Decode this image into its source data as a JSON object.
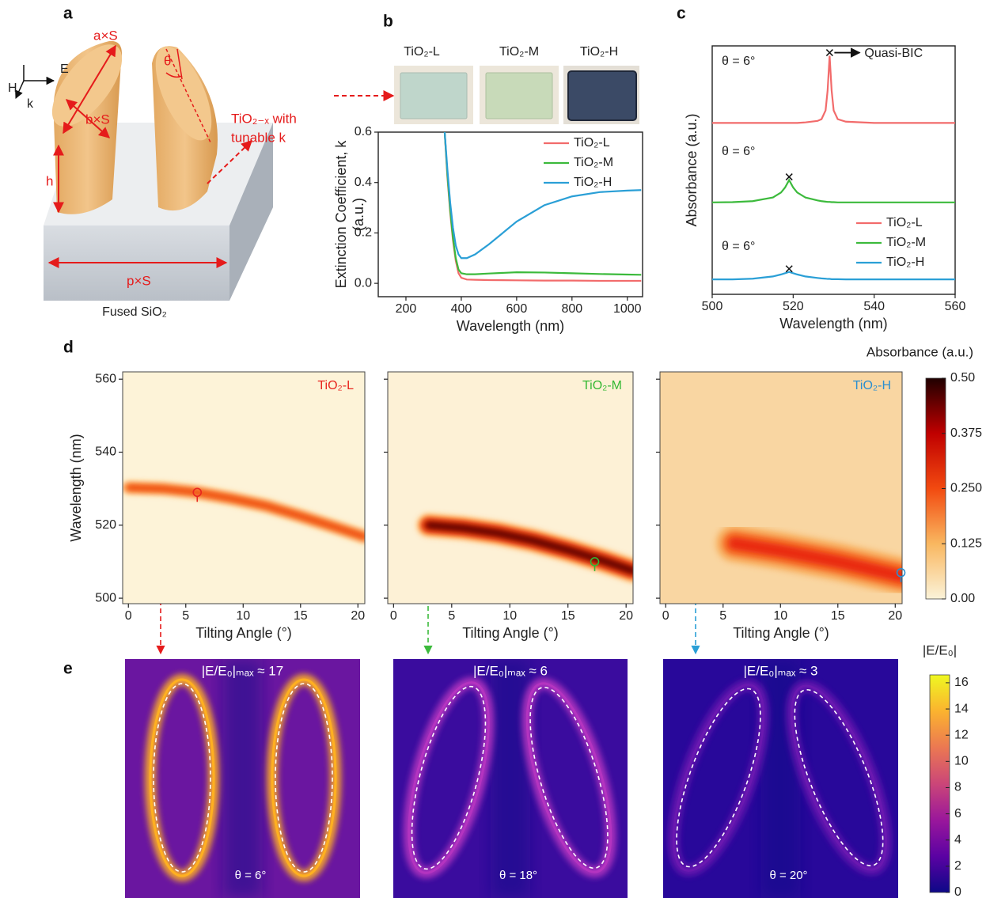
{
  "panel_labels": [
    "a",
    "b",
    "c",
    "d",
    "e"
  ],
  "schematic": {
    "field_labels": [
      "E",
      "H",
      "k"
    ],
    "dims": [
      "a×S",
      "θ",
      "b×S",
      "h",
      "p×S"
    ],
    "material": [
      "TiO₂₋ₓ with",
      "tunable k"
    ],
    "substrate": "Fused SiO₂"
  },
  "samples": [
    "TiO₂-L",
    "TiO₂-M",
    "TiO₂-H"
  ],
  "chart_data": [
    {
      "type": "line",
      "x_label": "Wavelength (nm)",
      "y_label": [
        "Extinction Coefficient, k",
        "(a.u.)"
      ],
      "x": [
        340,
        350,
        360,
        370,
        380,
        390,
        400,
        420,
        450,
        500,
        600,
        700,
        800,
        900,
        1000,
        1050
      ],
      "series": [
        {
          "name": "TiO₂-L",
          "color": "#f26b6b",
          "values": [
            0.6,
            0.42,
            0.28,
            0.17,
            0.09,
            0.04,
            0.022,
            0.015,
            0.014,
            0.013,
            0.012,
            0.011,
            0.011,
            0.01,
            0.01,
            0.01
          ]
        },
        {
          "name": "TiO₂-M",
          "color": "#3cba3c",
          "values": [
            0.6,
            0.43,
            0.29,
            0.18,
            0.1,
            0.055,
            0.04,
            0.036,
            0.036,
            0.039,
            0.044,
            0.043,
            0.04,
            0.037,
            0.035,
            0.034
          ]
        },
        {
          "name": "TiO₂-H",
          "color": "#2a9fd6",
          "values": [
            0.6,
            0.45,
            0.32,
            0.22,
            0.15,
            0.115,
            0.1,
            0.1,
            0.115,
            0.155,
            0.245,
            0.31,
            0.345,
            0.362,
            0.368,
            0.37
          ]
        }
      ],
      "xlim": [
        100,
        1055
      ],
      "xticks": [
        200,
        400,
        600,
        800,
        1000
      ],
      "ylim": [
        -0.053,
        0.6
      ],
      "yticks": [
        {
          "value": 0,
          "label": "0.0"
        },
        {
          "value": 0.2,
          "label": "0.2"
        },
        {
          "value": 0.4,
          "label": "0.4"
        },
        {
          "value": 0.6,
          "label": "0.6"
        }
      ],
      "legend": "upper right"
    },
    {
      "type": "line",
      "x_label": "Wavelength (nm)",
      "y_label": "Absorbance (a.u.)",
      "x": [
        500,
        505,
        510,
        515,
        517,
        518,
        519,
        520,
        521,
        523,
        526,
        527,
        528,
        528.5,
        529,
        529.5,
        530,
        531,
        533,
        540,
        550,
        560
      ],
      "series": [
        {
          "name": "TiO₂-L",
          "color": "#f26b6b",
          "values": [
            0.69,
            0.69,
            0.69,
            0.69,
            0.69,
            0.69,
            0.69,
            0.69,
            0.69,
            0.692,
            0.698,
            0.705,
            0.74,
            0.82,
            0.96,
            0.82,
            0.74,
            0.705,
            0.695,
            0.69,
            0.69,
            0.69
          ]
        },
        {
          "name": "TiO₂-M",
          "color": "#3cba3c",
          "values": [
            0.37,
            0.371,
            0.375,
            0.39,
            0.41,
            0.43,
            0.46,
            0.43,
            0.41,
            0.39,
            0.378,
            0.375,
            0.373,
            0.372,
            0.372,
            0.371,
            0.371,
            0.37,
            0.37,
            0.37,
            0.37,
            0.37
          ]
        },
        {
          "name": "TiO₂-H",
          "color": "#2a9fd6",
          "values": [
            0.06,
            0.06,
            0.063,
            0.072,
            0.08,
            0.085,
            0.09,
            0.085,
            0.08,
            0.072,
            0.066,
            0.064,
            0.063,
            0.062,
            0.062,
            0.061,
            0.061,
            0.061,
            0.06,
            0.06,
            0.06,
            0.06
          ]
        }
      ],
      "xlim": [
        500,
        560
      ],
      "xticks": [
        500,
        520,
        540,
        560
      ],
      "ylim": [
        0,
        1
      ],
      "legend": "lower right",
      "angle_labels": [
        "θ = 6°",
        "θ = 6°",
        "θ = 6°"
      ],
      "callout": "Quasi-BIC"
    },
    {
      "type": "heatmap",
      "title": "TiO₂-L",
      "title_color": "#e8261f",
      "x_label": "Tilting Angle (°)",
      "y_label": "Wavelength (nm)",
      "xlim": [
        -0.5,
        20.6
      ],
      "xticks": [
        0,
        5,
        10,
        15,
        20
      ],
      "ylim": [
        498.5,
        562
      ],
      "yticks": [
        500,
        520,
        540,
        560
      ],
      "ytick_labels": true,
      "background": "#fdf3d8",
      "ridge_colors": [
        "#ffc070",
        "#ff7a1a",
        "#e0200a"
      ],
      "ridge_x": [
        0,
        3,
        6,
        9,
        12,
        15,
        18,
        20.6
      ],
      "ridge_y": [
        530.3,
        530,
        529,
        527.3,
        525.3,
        522.5,
        519.5,
        516.8
      ],
      "marker": [
        6,
        529
      ]
    },
    {
      "type": "heatmap",
      "title": "TiO₂-M",
      "title_color": "#33b833",
      "x_label": "Tilting Angle (°)",
      "xlim": [
        -0.5,
        20.6
      ],
      "xticks": [
        0,
        5,
        10,
        15,
        20
      ],
      "ylim": [
        498.5,
        562
      ],
      "yticks": [
        500,
        520,
        540,
        560
      ],
      "ytick_labels": false,
      "background": "#fdf1d6",
      "ridge_colors": [
        "#ffb860",
        "#ff5a10",
        "#d01005",
        "#300000"
      ],
      "ridge_x": [
        3,
        6,
        9,
        12,
        15,
        18,
        20.6
      ],
      "ridge_y": [
        520,
        519.2,
        517.8,
        515.8,
        513.2,
        510.3,
        507.5
      ],
      "marker": [
        17.3,
        510
      ]
    },
    {
      "type": "heatmap",
      "title": "TiO₂-H",
      "title_color": "#2b8fd0",
      "x_label": "Tilting Angle (°)",
      "xlim": [
        -0.5,
        20.6
      ],
      "xticks": [
        0,
        5,
        10,
        15,
        20
      ],
      "ylim": [
        498.5,
        562
      ],
      "yticks": [
        500,
        520,
        540,
        560
      ],
      "ytick_labels": false,
      "background": "#f9d6a2",
      "ridge_colors": [
        "#f8b060",
        "#f56a20",
        "#e8200a"
      ],
      "ridge_x": [
        6,
        10,
        15,
        20.6
      ],
      "ridge_y": [
        515,
        513,
        510,
        506
      ],
      "marker": [
        20.5,
        507
      ]
    },
    {
      "type": "colorbar",
      "title": "Absorbance (a.u.)",
      "lim": [
        0,
        0.5
      ],
      "ticks": [
        {
          "value": 0,
          "label": "0.00"
        },
        0.125,
        {
          "value": 0.25,
          "label": "0.250"
        },
        0.375,
        {
          "value": 0.5,
          "label": "0.50"
        }
      ],
      "colors": [
        "#fbf3d9",
        "#f9b760",
        "#f24a10",
        "#c00000",
        "#200000"
      ]
    },
    {
      "type": "field-map",
      "title": "|E/E₀|ₘₐₓ ≈ 17",
      "annotation": "θ = 6°",
      "background": "#6a16a0",
      "glow": "#ffb020"
    },
    {
      "type": "field-map",
      "title": "|E/E₀|ₘₐₓ ≈ 6",
      "annotation": "θ = 18°",
      "background": "#3a0c9e",
      "glow": "#b434c0"
    },
    {
      "type": "field-map",
      "title": "|E/E₀|ₘₐₓ ≈ 3",
      "annotation": "θ = 20°",
      "background": "#28089a",
      "glow": "#6a18b0"
    },
    {
      "type": "colorbar",
      "title": "|E/E₀|",
      "lim": [
        0,
        16.6
      ],
      "ticks": [
        0,
        2,
        4,
        6,
        8,
        10,
        12,
        14,
        16
      ],
      "colors": [
        "#0d0887",
        "#5b02a3",
        "#9a179b",
        "#cb4678",
        "#eb7852",
        "#fbb32f",
        "#eff821"
      ]
    }
  ]
}
